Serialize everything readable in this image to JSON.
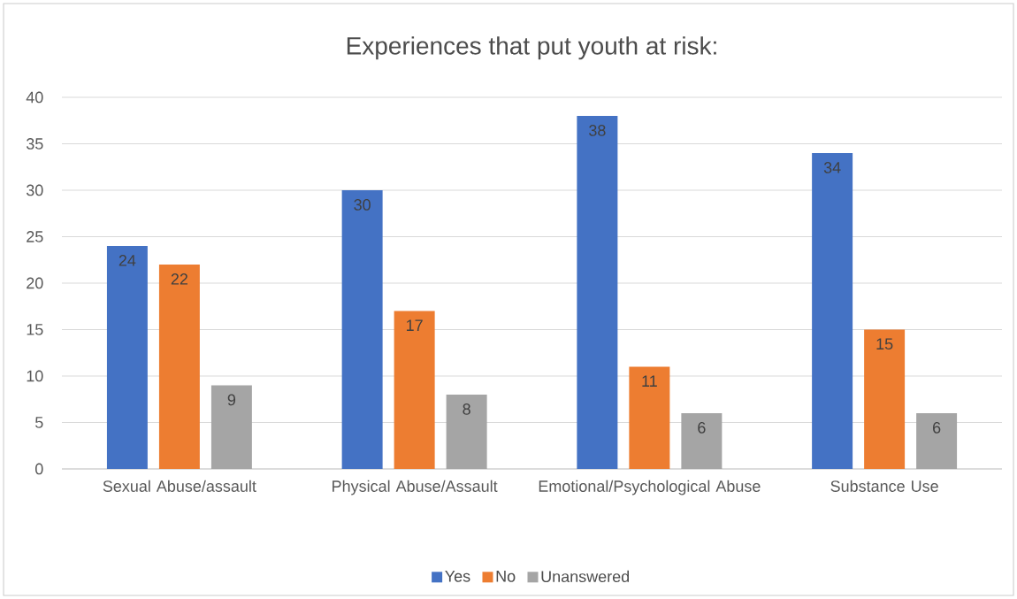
{
  "chart_data": {
    "type": "bar",
    "title": "Experiences that put youth at risk:",
    "categories": [
      "Sexual Abuse/assault",
      "Physical Abuse/Assault",
      "Emotional/Psychological Abuse",
      "Substance Use"
    ],
    "series": [
      {
        "name": "Yes",
        "color": "#4472c4",
        "values": [
          24,
          30,
          38,
          34
        ]
      },
      {
        "name": "No",
        "color": "#ed7d31",
        "values": [
          22,
          17,
          11,
          15
        ]
      },
      {
        "name": "Unanswered",
        "color": "#a5a5a5",
        "values": [
          9,
          8,
          6,
          6
        ]
      }
    ],
    "ylim": [
      0,
      40
    ],
    "yticks": [
      0,
      5,
      10,
      15,
      20,
      25,
      30,
      35,
      40
    ],
    "grid": "y",
    "legend": "bottom",
    "data_labels": true
  }
}
